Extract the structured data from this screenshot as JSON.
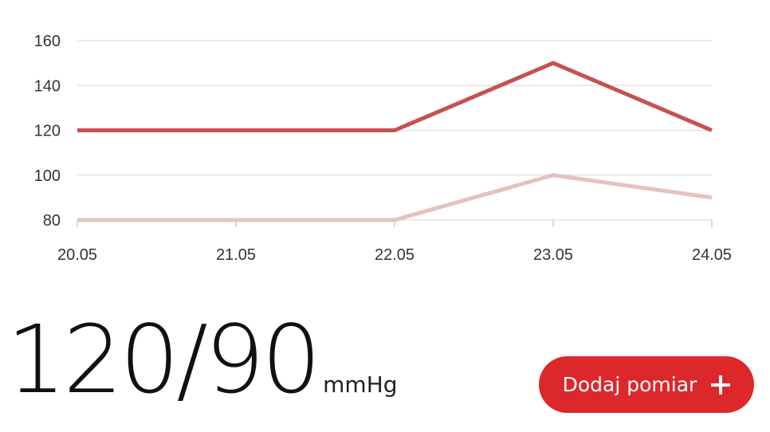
{
  "chart_data": {
    "type": "line",
    "categories": [
      "20.05",
      "21.05",
      "22.05",
      "23.05",
      "24.05"
    ],
    "yticks": [
      80,
      100,
      120,
      140,
      160
    ],
    "ylim": [
      80,
      160
    ],
    "grid": true,
    "series": [
      {
        "values": [
          120,
          120,
          120,
          150,
          120
        ],
        "color": "#c75152"
      },
      {
        "values": [
          80,
          80,
          80,
          100,
          90
        ],
        "color": "#e3c2c1"
      }
    ]
  },
  "reading": {
    "value": "120/90",
    "unit": "mmHg"
  },
  "add_button": {
    "label": "Dodaj pomiar",
    "color": "#dc282b"
  },
  "colors": {
    "grid": "#e3e3e3",
    "axis": "#cccccc"
  }
}
